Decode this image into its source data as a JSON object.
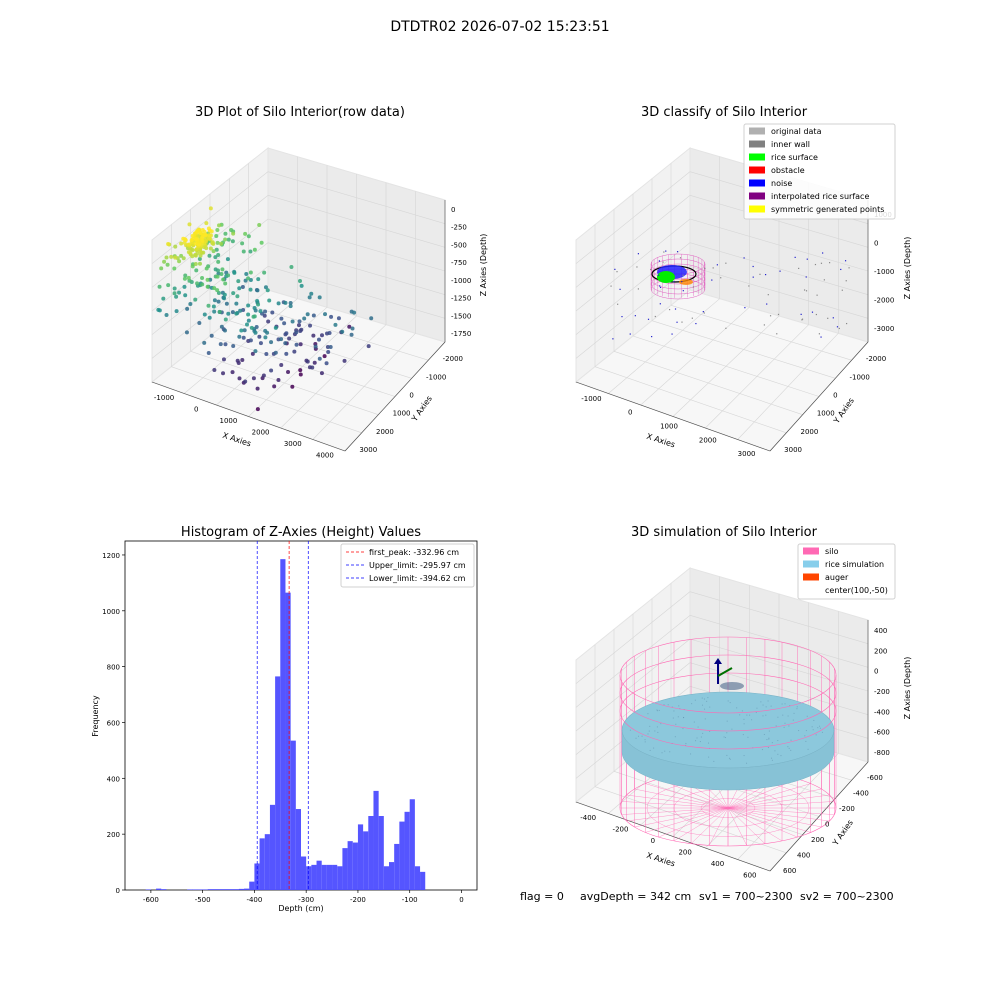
{
  "figure_title": "DTDTR02 2026-07-02 15:23:51",
  "footer": {
    "flag": "flag = 0",
    "avg_depth": "avgDepth = 342 cm",
    "sv1": "sv1 = 700~2300",
    "sv2": "sv2 = 700~2300"
  },
  "chart_data": [
    {
      "id": "raw",
      "type": "scatter",
      "title": "3D Plot of Silo Interior(row data)",
      "xlabel": "X Axies",
      "ylabel": "Y Axies",
      "zlabel": "Z Axies (Depth)",
      "xticks": [
        "-1000",
        "0",
        "1000",
        "2000",
        "3000",
        "4000"
      ],
      "yticks": [
        "-2000",
        "-1000",
        "0",
        "1000",
        "2000",
        "3000"
      ],
      "zticks": [
        "0",
        "-250",
        "-500",
        "-750",
        "-1000",
        "-1250",
        "-1500",
        "-1750"
      ],
      "colormap": "viridis"
    },
    {
      "id": "classify",
      "type": "scatter",
      "title": "3D classify of Silo Interior",
      "xlabel": "X Axies",
      "ylabel": "Y Axies",
      "zlabel": "Z Axies (Depth)",
      "xticks": [
        "-1000",
        "0",
        "1000",
        "2000",
        "3000"
      ],
      "yticks": [
        "-2000",
        "-1000",
        "0",
        "1000",
        "2000",
        "3000"
      ],
      "zticks": [
        "1000",
        "0",
        "-1000",
        "-2000",
        "-3000"
      ],
      "legend_position": "top-right",
      "legend": [
        {
          "label": "original data",
          "color": "#b0b0b0"
        },
        {
          "label": "inner wall",
          "color": "#808080"
        },
        {
          "label": "rice surface",
          "color": "#00ff00"
        },
        {
          "label": "obstacle",
          "color": "#ff0000"
        },
        {
          "label": "noise",
          "color": "#0000ff"
        },
        {
          "label": "interpolated rice surface",
          "color": "#800080"
        },
        {
          "label": "symmetric generated points",
          "color": "#ffff00"
        }
      ]
    },
    {
      "id": "hist",
      "type": "bar",
      "title": "Histogram of Z-Axies (Height) Values",
      "xlabel": "Depth (cm)",
      "ylabel": "Frequency",
      "xlim": [
        -650,
        30
      ],
      "ylim": [
        0,
        1250
      ],
      "xticks": [
        -600,
        -500,
        -400,
        -300,
        -200,
        -100,
        0
      ],
      "yticks": [
        0,
        200,
        400,
        600,
        800,
        1000,
        1200
      ],
      "bar_color": "#4c4cff",
      "bin_width": 10,
      "bins": [
        [
          -610,
          2
        ],
        [
          -590,
          5
        ],
        [
          -580,
          3
        ],
        [
          -530,
          2
        ],
        [
          -520,
          2
        ],
        [
          -510,
          2
        ],
        [
          -500,
          2
        ],
        [
          -490,
          3
        ],
        [
          -480,
          3
        ],
        [
          -470,
          3
        ],
        [
          -460,
          3
        ],
        [
          -450,
          3
        ],
        [
          -440,
          3
        ],
        [
          -430,
          4
        ],
        [
          -420,
          5
        ],
        [
          -410,
          30
        ],
        [
          -400,
          95
        ],
        [
          -390,
          185
        ],
        [
          -380,
          200
        ],
        [
          -370,
          305
        ],
        [
          -360,
          765
        ],
        [
          -350,
          1185
        ],
        [
          -340,
          1065
        ],
        [
          -330,
          535
        ],
        [
          -320,
          290
        ],
        [
          -310,
          120
        ],
        [
          -300,
          85
        ],
        [
          -290,
          90
        ],
        [
          -280,
          105
        ],
        [
          -270,
          90
        ],
        [
          -260,
          90
        ],
        [
          -250,
          90
        ],
        [
          -240,
          85
        ],
        [
          -230,
          150
        ],
        [
          -220,
          175
        ],
        [
          -210,
          170
        ],
        [
          -200,
          235
        ],
        [
          -190,
          210
        ],
        [
          -180,
          265
        ],
        [
          -170,
          355
        ],
        [
          -160,
          265
        ],
        [
          -150,
          85
        ],
        [
          -140,
          100
        ],
        [
          -130,
          165
        ],
        [
          -120,
          245
        ],
        [
          -110,
          280
        ],
        [
          -100,
          325
        ],
        [
          -90,
          85
        ],
        [
          -80,
          65
        ]
      ],
      "lines": [
        {
          "label": "first_peak: -332.96 cm",
          "x": -332.96,
          "color": "#ff0000"
        },
        {
          "label": "Upper_limit: -295.97 cm",
          "x": -295.97,
          "color": "#0000ff"
        },
        {
          "label": "Lower_limit: -394.62 cm",
          "x": -394.62,
          "color": "#0000ff"
        }
      ],
      "legend_position": "top-right"
    },
    {
      "id": "sim",
      "type": "scatter",
      "title": "3D simulation of Silo Interior",
      "xlabel": "X Axies",
      "ylabel": "Y Axies",
      "zlabel": "Z Axies (Depth)",
      "xticks": [
        "-400",
        "-200",
        "0",
        "200",
        "400",
        "600"
      ],
      "yticks": [
        "-600",
        "-400",
        "-200",
        "0",
        "200",
        "400",
        "600"
      ],
      "zticks": [
        "400",
        "200",
        "0",
        "-200",
        "-400",
        "-600",
        "-800"
      ],
      "legend_position": "top-right",
      "legend": [
        {
          "label": "silo",
          "color": "#ff69b4"
        },
        {
          "label": "rice simulation",
          "color": "#87ceeb"
        },
        {
          "label": "auger",
          "color": "#ff4500"
        },
        {
          "label": "center(100,-50)",
          "color": ""
        }
      ]
    }
  ]
}
